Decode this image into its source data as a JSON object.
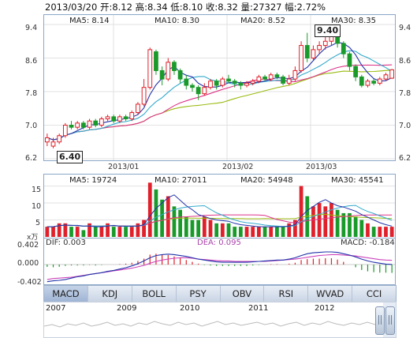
{
  "header": {
    "date": "2013/03/20",
    "open": "开:8.12",
    "high": "高:8.34",
    "low": "低:8.10",
    "close": "收:8.32",
    "volume": "量:27327",
    "change": "幅:2.72%"
  },
  "price_legend": {
    "ma5": "MA5: 8.14",
    "ma10": "MA10: 8.30",
    "ma20": "MA20: 8.52",
    "ma30": "MA30: 8.35"
  },
  "volume_legend": {
    "ma5": "MA5: 19724",
    "ma10": "MA10: 27011",
    "ma20": "MA20: 54948",
    "ma30": "MA30: 45541"
  },
  "macd_legend": {
    "dif": "DIF: 0.003",
    "dea": "DEA: 0.095",
    "macd": "MACD: -0.184"
  },
  "volume_unit": "x万",
  "price_axis": [
    "9.4",
    "8.6",
    "7.8",
    "7.0",
    "6.2"
  ],
  "volume_axis": [
    "15",
    "10",
    "5"
  ],
  "macd_axis": [
    "0.402",
    "0.000",
    "-0.402"
  ],
  "date_ticks": [
    "2013/01",
    "2013/02",
    "2013/03"
  ],
  "annotations": {
    "high": "9.40",
    "low": "6.40"
  },
  "tabs": [
    "MACD",
    "KDJ",
    "BOLL",
    "PSY",
    "OBV",
    "RSI",
    "WVAD",
    "CCI"
  ],
  "active_tab": "MACD",
  "nav_years": [
    "2007",
    "2009",
    "2010",
    "2011",
    "2012"
  ],
  "colors": {
    "up": "#e0202a",
    "down": "#1a9a2a",
    "ma5": "#2233aa",
    "ma10": "#33aacc",
    "ma20": "#dd3388",
    "ma30": "#99bb11",
    "frame": "#8aa7c7",
    "grid": "#e2e2e2",
    "dea": "#cc44bb",
    "dif": "#2233aa"
  },
  "chart_data": {
    "type": "candlestick",
    "price_ylim": [
      6.2,
      9.4
    ],
    "volume_ylim": [
      0,
      17
    ],
    "macd_ylim": [
      -0.402,
      0.402
    ],
    "candles": [
      [
        6.6,
        6.7,
        6.5,
        6.8
      ],
      [
        6.5,
        6.6,
        6.45,
        6.7
      ],
      [
        6.6,
        6.75,
        6.55,
        6.8
      ],
      [
        6.75,
        7.0,
        6.7,
        7.05
      ],
      [
        7.0,
        6.95,
        6.9,
        7.1
      ],
      [
        6.95,
        7.05,
        6.9,
        7.1
      ],
      [
        7.05,
        6.95,
        6.9,
        7.1
      ],
      [
        6.95,
        7.1,
        6.9,
        7.15
      ],
      [
        7.1,
        7.0,
        6.95,
        7.15
      ],
      [
        7.0,
        7.15,
        6.95,
        7.2
      ],
      [
        7.15,
        7.2,
        7.1,
        7.25
      ],
      [
        7.2,
        7.1,
        7.05,
        7.25
      ],
      [
        7.1,
        7.2,
        7.05,
        7.25
      ],
      [
        7.2,
        7.15,
        7.1,
        7.25
      ],
      [
        7.15,
        7.3,
        7.1,
        7.35
      ],
      [
        7.3,
        7.5,
        7.25,
        7.55
      ],
      [
        7.5,
        7.9,
        7.45,
        8.1
      ],
      [
        7.9,
        8.8,
        7.85,
        8.85
      ],
      [
        8.75,
        8.3,
        8.2,
        8.8
      ],
      [
        8.3,
        8.1,
        7.95,
        8.4
      ],
      [
        8.1,
        8.5,
        8.05,
        8.6
      ],
      [
        8.5,
        8.3,
        8.2,
        8.55
      ],
      [
        8.3,
        8.1,
        8.0,
        8.35
      ],
      [
        8.1,
        7.95,
        7.85,
        8.2
      ],
      [
        7.95,
        7.9,
        7.8,
        8.0
      ],
      [
        7.9,
        7.75,
        7.6,
        7.95
      ],
      [
        7.75,
        7.9,
        7.7,
        8.0
      ],
      [
        7.9,
        8.05,
        7.85,
        8.1
      ],
      [
        8.05,
        7.95,
        7.85,
        8.1
      ],
      [
        7.95,
        8.1,
        7.9,
        8.15
      ],
      [
        8.1,
        8.05,
        8.0,
        8.2
      ],
      [
        8.05,
        8.0,
        7.9,
        8.1
      ],
      [
        8.0,
        7.95,
        7.85,
        8.05
      ],
      [
        7.95,
        8.0,
        7.9,
        8.05
      ],
      [
        8.0,
        8.05,
        7.95,
        8.1
      ],
      [
        8.05,
        8.15,
        8.0,
        8.2
      ],
      [
        8.15,
        8.1,
        8.05,
        8.2
      ],
      [
        8.1,
        8.2,
        8.05,
        8.25
      ],
      [
        8.2,
        8.15,
        8.1,
        8.25
      ],
      [
        8.15,
        8.0,
        7.95,
        8.2
      ],
      [
        8.0,
        8.1,
        7.95,
        8.2
      ],
      [
        8.1,
        8.3,
        8.05,
        8.4
      ],
      [
        8.3,
        8.9,
        8.25,
        9.0
      ],
      [
        8.9,
        8.6,
        8.5,
        9.2
      ],
      [
        8.6,
        8.8,
        8.55,
        8.9
      ],
      [
        8.8,
        8.9,
        8.7,
        9.0
      ],
      [
        8.9,
        9.0,
        8.8,
        9.1
      ],
      [
        9.0,
        9.2,
        8.9,
        9.4
      ],
      [
        9.2,
        8.95,
        8.85,
        9.3
      ],
      [
        8.95,
        8.7,
        8.6,
        9.0
      ],
      [
        8.7,
        8.4,
        8.3,
        8.75
      ],
      [
        8.4,
        8.15,
        8.05,
        8.45
      ],
      [
        8.15,
        7.95,
        7.9,
        8.2
      ],
      [
        7.95,
        8.05,
        7.9,
        8.1
      ],
      [
        8.05,
        8.0,
        7.95,
        8.1
      ],
      [
        8.0,
        8.1,
        7.95,
        8.15
      ],
      [
        8.1,
        8.2,
        8.05,
        8.25
      ],
      [
        8.12,
        8.32,
        8.1,
        8.34
      ]
    ],
    "volumes": [
      3,
      3,
      4,
      4,
      3,
      3,
      2,
      4,
      3,
      3,
      4,
      3,
      3,
      3,
      3,
      4,
      5,
      16,
      14,
      11,
      12,
      9,
      8,
      6,
      5,
      5,
      6,
      5,
      4,
      4,
      4,
      3,
      3,
      3,
      3,
      3,
      3,
      3,
      3,
      3,
      4,
      5,
      15,
      12,
      9,
      10,
      9,
      10,
      8,
      7,
      7,
      6,
      5,
      4,
      3,
      3,
      3,
      3
    ],
    "macd_bars": [
      -0.05,
      -0.06,
      -0.05,
      -0.03,
      -0.02,
      -0.02,
      -0.02,
      -0.01,
      -0.02,
      -0.01,
      0.0,
      0.0,
      0.01,
      0.02,
      0.04,
      0.08,
      0.13,
      0.22,
      0.24,
      0.22,
      0.21,
      0.18,
      0.14,
      0.1,
      0.06,
      0.02,
      -0.01,
      -0.02,
      -0.03,
      -0.03,
      -0.03,
      -0.03,
      -0.03,
      -0.03,
      -0.02,
      -0.01,
      0.0,
      0.01,
      0.01,
      0.0,
      0.02,
      0.04,
      0.1,
      0.12,
      0.13,
      0.13,
      0.14,
      0.14,
      0.11,
      0.06,
      0.0,
      -0.06,
      -0.12,
      -0.15,
      -0.17,
      -0.18,
      -0.18,
      -0.184
    ],
    "dif_line": [
      -0.38,
      -0.36,
      -0.35,
      -0.33,
      -0.3,
      -0.27,
      -0.25,
      -0.22,
      -0.2,
      -0.18,
      -0.15,
      -0.13,
      -0.1,
      -0.07,
      -0.03,
      0.02,
      0.08,
      0.15,
      0.2,
      0.22,
      0.23,
      0.22,
      0.2,
      0.18,
      0.15,
      0.12,
      0.1,
      0.08,
      0.06,
      0.05,
      0.05,
      0.05,
      0.05,
      0.05,
      0.06,
      0.07,
      0.08,
      0.09,
      0.1,
      0.1,
      0.12,
      0.15,
      0.2,
      0.24,
      0.26,
      0.27,
      0.28,
      0.28,
      0.27,
      0.24,
      0.21,
      0.17,
      0.12,
      0.08,
      0.05,
      0.03,
      0.01,
      0.003
    ],
    "dea_line": [
      -0.33,
      -0.31,
      -0.3,
      -0.29,
      -0.28,
      -0.26,
      -0.24,
      -0.22,
      -0.2,
      -0.18,
      -0.16,
      -0.14,
      -0.12,
      -0.1,
      -0.08,
      -0.05,
      -0.02,
      0.03,
      0.07,
      0.1,
      0.12,
      0.14,
      0.15,
      0.15,
      0.14,
      0.12,
      0.11,
      0.1,
      0.09,
      0.08,
      0.08,
      0.07,
      0.07,
      0.07,
      0.07,
      0.07,
      0.07,
      0.08,
      0.09,
      0.1,
      0.11,
      0.12,
      0.14,
      0.16,
      0.18,
      0.2,
      0.21,
      0.22,
      0.22,
      0.21,
      0.2,
      0.19,
      0.17,
      0.15,
      0.13,
      0.11,
      0.1,
      0.095
    ]
  }
}
